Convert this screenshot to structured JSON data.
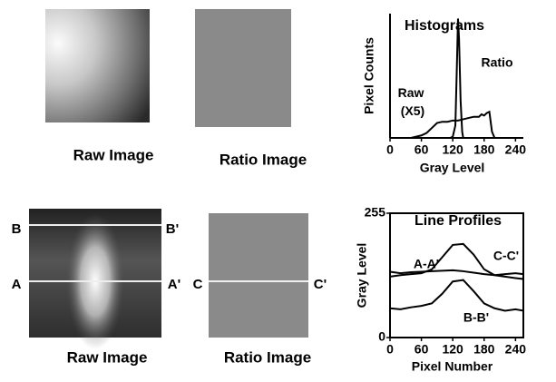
{
  "images": [
    {
      "caption": "Raw Image"
    },
    {
      "caption": "Ratio Image"
    },
    {
      "caption": "Raw Image",
      "line_labels": [
        "B",
        "B'",
        "A",
        "A'"
      ]
    },
    {
      "caption": "Ratio Image",
      "line_labels": [
        "C",
        "C'"
      ]
    }
  ],
  "chart_data": [
    {
      "type": "line",
      "title": "Histograms",
      "y_label": "Pixel Counts",
      "x_label": "Gray Level",
      "xlim": [
        0,
        255
      ],
      "xticks": [
        0,
        60,
        120,
        180,
        240
      ],
      "ylim": [
        0,
        100
      ],
      "series": [
        {
          "name": "Raw (X5)",
          "color": "#000000",
          "x": [
            40,
            50,
            60,
            70,
            80,
            90,
            100,
            110,
            120,
            130,
            140,
            150,
            160,
            170,
            175,
            180,
            185,
            190,
            195,
            200
          ],
          "values": [
            0,
            1,
            2,
            4,
            8,
            12,
            13,
            13,
            14,
            14,
            15,
            16,
            17,
            17,
            19,
            18,
            20,
            21,
            5,
            0
          ]
        },
        {
          "name": "Ratio",
          "color": "#000000",
          "x": [
            115,
            120,
            125,
            128,
            130,
            132,
            135,
            138,
            140
          ],
          "values": [
            0,
            1,
            10,
            60,
            96,
            80,
            30,
            5,
            0
          ]
        }
      ]
    },
    {
      "type": "line",
      "title": "Line Profiles",
      "y_label": "Gray Level",
      "x_label": "Pixel Number",
      "xlim": [
        0,
        255
      ],
      "xticks": [
        0,
        60,
        120,
        180,
        240
      ],
      "ylim": [
        0,
        255
      ],
      "yticks": [
        0,
        255
      ],
      "series": [
        {
          "name": "A-A'",
          "color": "#000000",
          "x": [
            0,
            20,
            40,
            60,
            80,
            100,
            120,
            140,
            160,
            180,
            200,
            220,
            240,
            255
          ],
          "values": [
            125,
            128,
            130,
            132,
            140,
            165,
            190,
            192,
            170,
            140,
            128,
            125,
            122,
            120
          ]
        },
        {
          "name": "C-C'",
          "color": "#000000",
          "x": [
            0,
            20,
            40,
            60,
            80,
            100,
            120,
            140,
            160,
            180,
            200,
            220,
            240,
            255
          ],
          "values": [
            135,
            132,
            134,
            135,
            136,
            137,
            138,
            136,
            133,
            130,
            128,
            130,
            132,
            130
          ]
        },
        {
          "name": "B-B'",
          "color": "#000000",
          "x": [
            0,
            20,
            40,
            60,
            80,
            100,
            120,
            140,
            160,
            180,
            200,
            220,
            240,
            255
          ],
          "values": [
            60,
            58,
            62,
            65,
            70,
            90,
            115,
            118,
            95,
            70,
            60,
            55,
            58,
            55
          ]
        }
      ]
    }
  ]
}
